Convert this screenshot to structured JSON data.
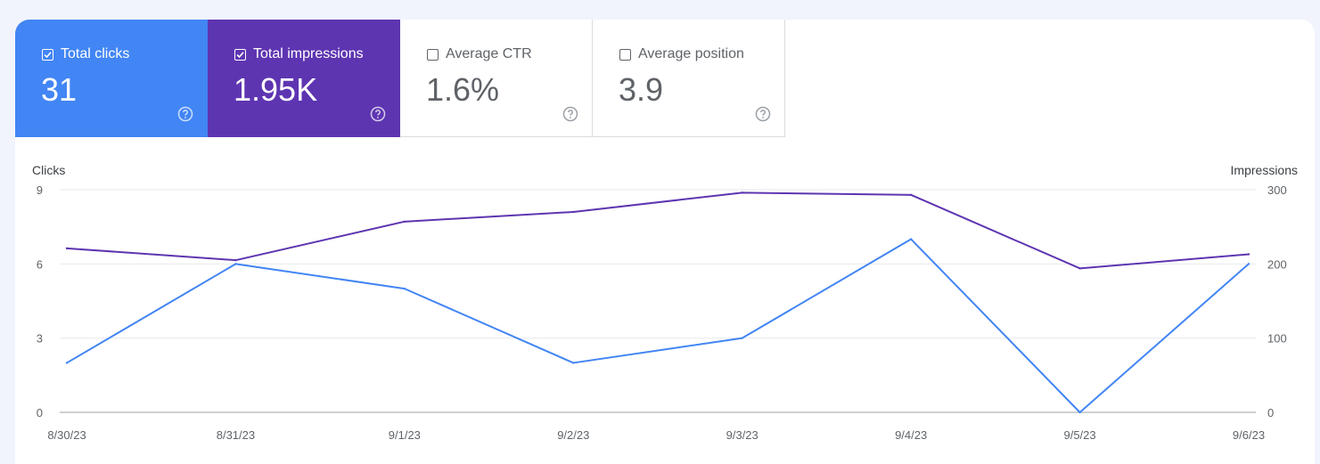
{
  "metrics": [
    {
      "label": "Total clicks",
      "value": "31",
      "checked": true,
      "color": "#4285f4"
    },
    {
      "label": "Total impressions",
      "value": "1.95K",
      "checked": true,
      "color": "#5e35b1"
    },
    {
      "label": "Average CTR",
      "value": "1.6%",
      "checked": false,
      "color": "#ffffff"
    },
    {
      "label": "Average position",
      "value": "3.9",
      "checked": false,
      "color": "#ffffff"
    }
  ],
  "help_icon": "help-circle-icon",
  "chart_data": {
    "type": "line",
    "x": [
      "8/30/23",
      "8/31/23",
      "9/1/23",
      "9/2/23",
      "9/3/23",
      "9/4/23",
      "9/5/23",
      "9/6/23"
    ],
    "left_axis": {
      "label": "Clicks",
      "ticks": [
        "0",
        "3",
        "6",
        "9"
      ],
      "range": [
        0,
        9
      ]
    },
    "right_axis": {
      "label": "Impressions",
      "ticks": [
        "0",
        "100",
        "200",
        "300"
      ],
      "range": [
        0,
        300
      ]
    },
    "series": [
      {
        "name": "Total clicks",
        "axis": "left",
        "color": "#4285f4",
        "values": [
          2,
          6,
          5,
          2,
          3,
          7,
          0,
          6
        ]
      },
      {
        "name": "Total impressions",
        "axis": "right",
        "color": "#5e35b1",
        "values": [
          221,
          205,
          257,
          270,
          296,
          293,
          194,
          213
        ]
      }
    ],
    "grid": true
  }
}
